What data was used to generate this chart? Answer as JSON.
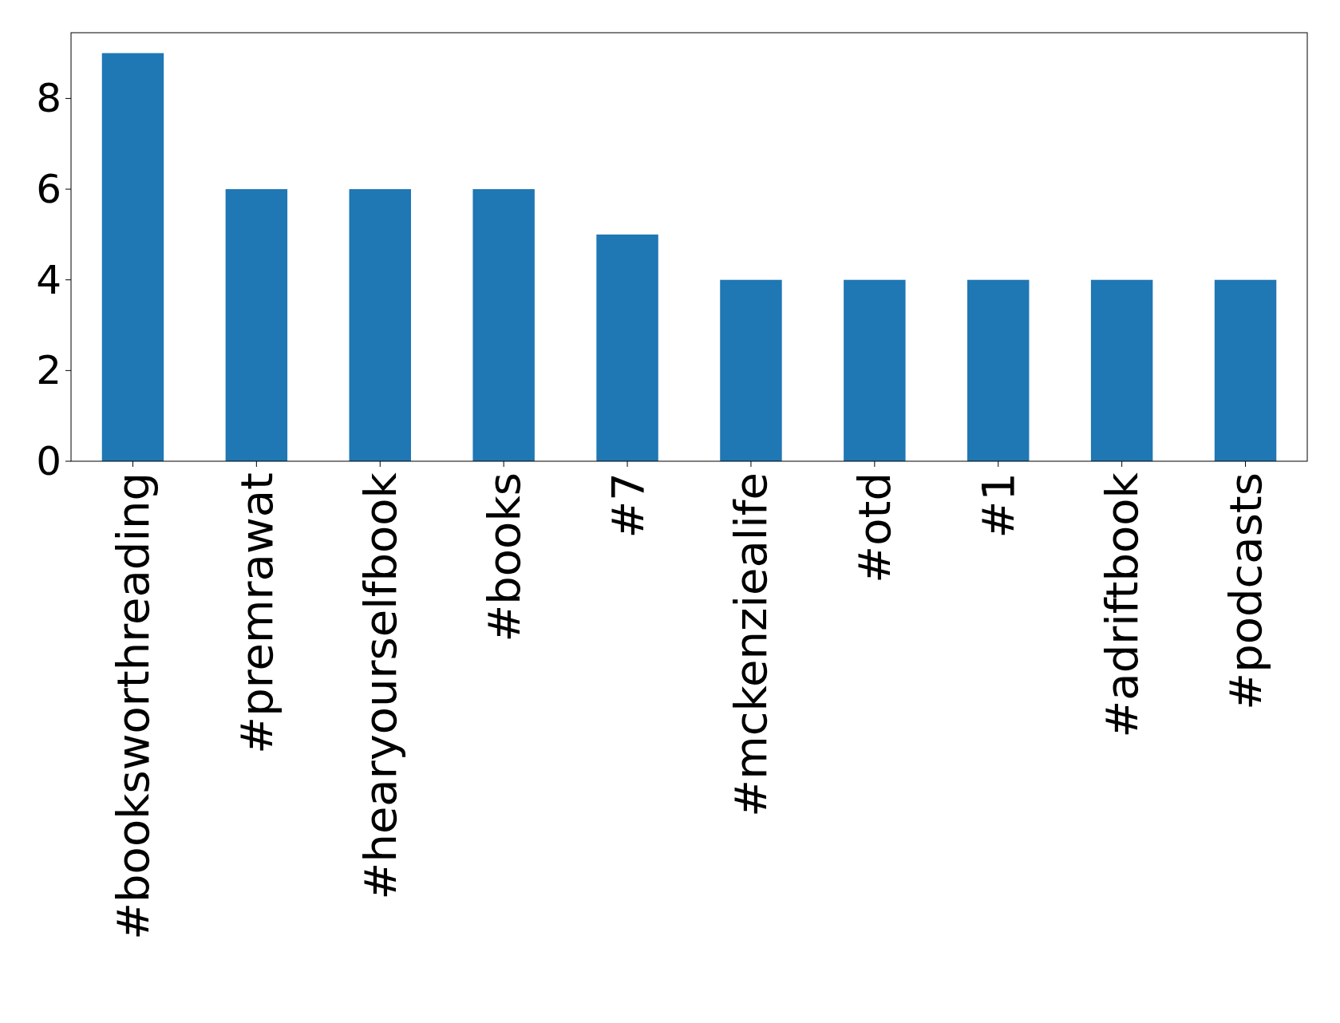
{
  "chart_data": {
    "type": "bar",
    "categories": [
      "#booksworthreading",
      "#premrawat",
      "#hearyourselfbook",
      "#books",
      "#7",
      "#mckenziealife",
      "#otd",
      "#1",
      "#adriftbook",
      "#podcasts"
    ],
    "values": [
      9,
      6,
      6,
      6,
      5,
      4,
      4,
      4,
      4,
      4
    ],
    "color": "#1f77b4",
    "ylim": [
      0,
      9.45
    ],
    "yticks": [
      0,
      2,
      4,
      6,
      8
    ],
    "grid": false
  }
}
